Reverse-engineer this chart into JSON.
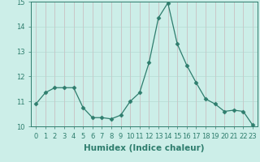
{
  "x": [
    0,
    1,
    2,
    3,
    4,
    5,
    6,
    7,
    8,
    9,
    10,
    11,
    12,
    13,
    14,
    15,
    16,
    17,
    18,
    19,
    20,
    21,
    22,
    23
  ],
  "y": [
    10.9,
    11.35,
    11.55,
    11.55,
    11.55,
    10.75,
    10.35,
    10.35,
    10.3,
    10.45,
    11.0,
    11.35,
    12.55,
    14.35,
    14.95,
    13.3,
    12.45,
    11.75,
    11.1,
    10.9,
    10.6,
    10.65,
    10.6,
    10.05
  ],
  "xlim": [
    -0.5,
    23.5
  ],
  "ylim": [
    10,
    15
  ],
  "yticks": [
    10,
    11,
    12,
    13,
    14,
    15
  ],
  "xticks": [
    0,
    1,
    2,
    3,
    4,
    5,
    6,
    7,
    8,
    9,
    10,
    11,
    12,
    13,
    14,
    15,
    16,
    17,
    18,
    19,
    20,
    21,
    22,
    23
  ],
  "xlabel": "Humidex (Indice chaleur)",
  "line_color": "#2e7d6d",
  "marker": "D",
  "marker_size": 2.5,
  "bg_color": "#cceee8",
  "grid_color": "#b0d5ce",
  "tick_fontsize": 6,
  "xlabel_fontsize": 7.5
}
